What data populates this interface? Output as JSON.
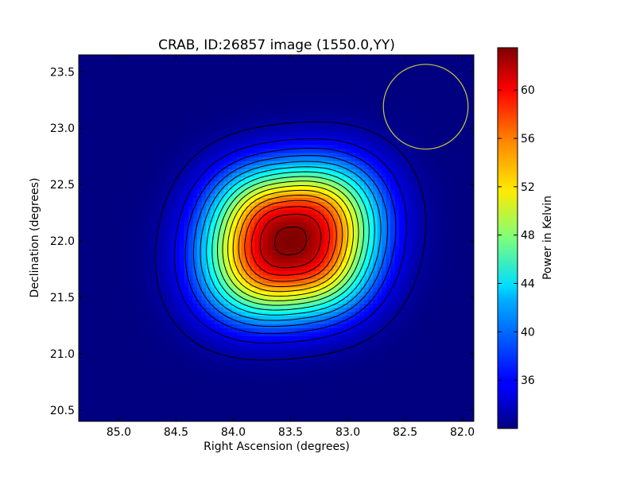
{
  "chart_data": {
    "type": "heatmap",
    "title": "CRAB, ID:26857 image (1550.0,YY)",
    "xlabel": "Right Ascension (degrees)",
    "ylabel": "Declination (degrees)",
    "xlim": [
      85.35,
      81.9
    ],
    "ylim": [
      20.4,
      23.65
    ],
    "x_ticks": [
      "85.0",
      "84.5",
      "84.0",
      "83.5",
      "83.0",
      "82.5",
      "82.0"
    ],
    "y_ticks": [
      "20.5",
      "21.0",
      "21.5",
      "22.0",
      "22.5",
      "23.0",
      "23.5"
    ],
    "colorbar": {
      "label": "Power in Kelvin",
      "range": [
        32,
        63.5
      ],
      "ticks": [
        "36",
        "40",
        "44",
        "48",
        "52",
        "56",
        "60"
      ],
      "colormap": "jet"
    },
    "source_peak": {
      "ra": 83.5,
      "dec": 22.0,
      "value": 63.5
    },
    "background_level": 32,
    "contour_levels": [
      33,
      35,
      37,
      39,
      41,
      43,
      45,
      47,
      49,
      51,
      53,
      55,
      57,
      59,
      61,
      63
    ],
    "beam_circle": {
      "ra": 82.32,
      "dec": 23.19,
      "radius_deg": 0.37,
      "color": "#c8c83c"
    }
  }
}
